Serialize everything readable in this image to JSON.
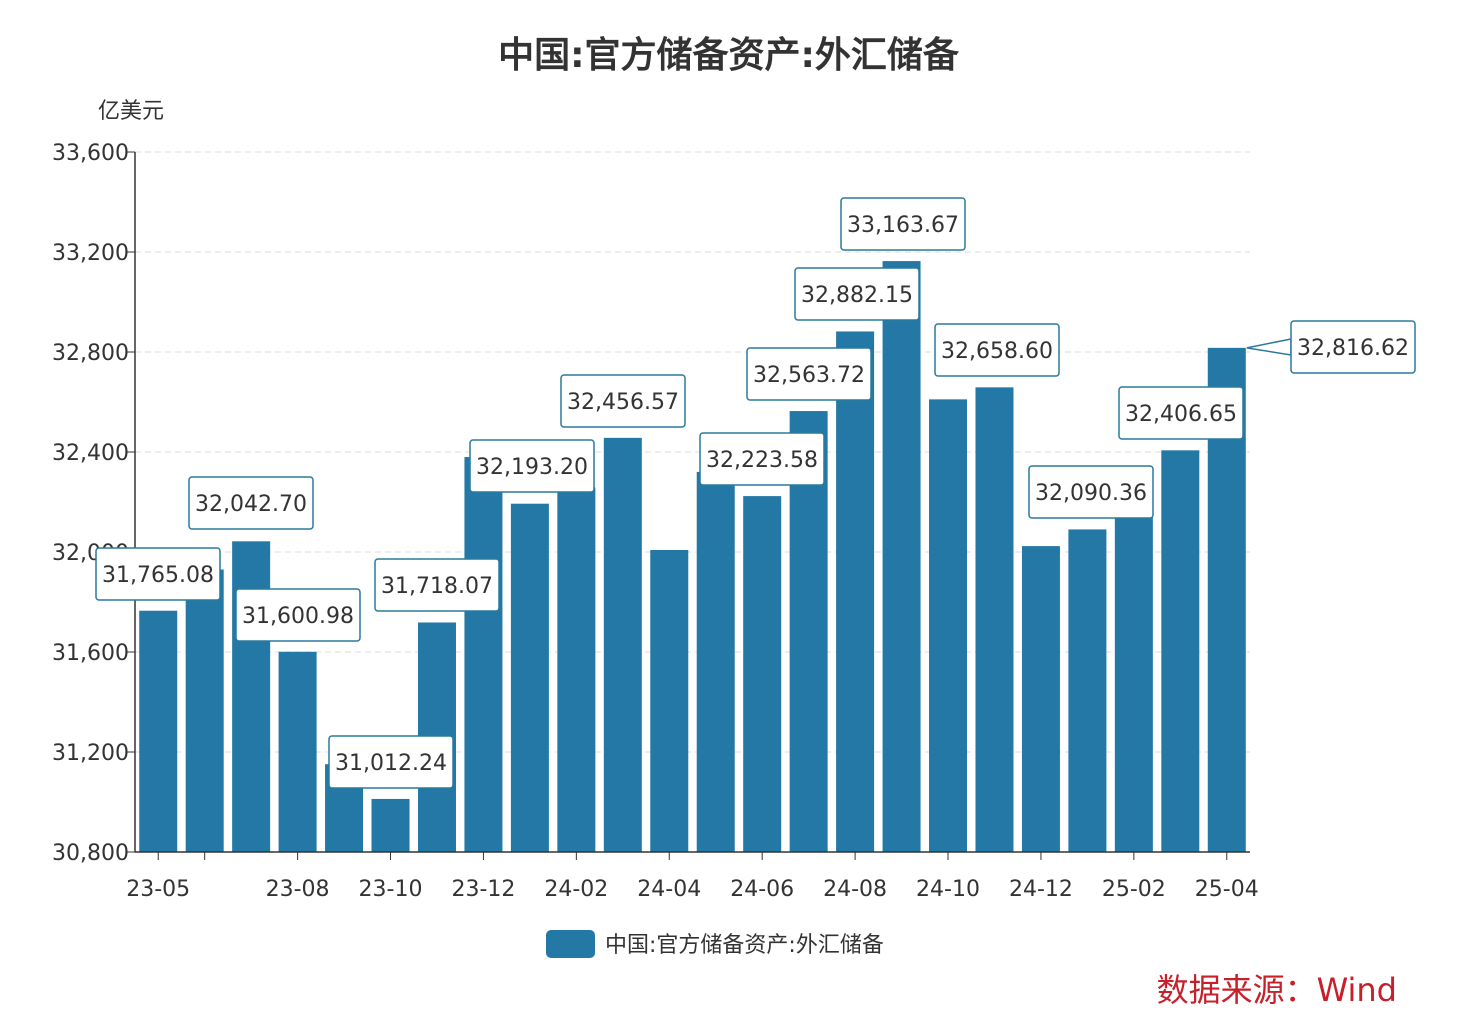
{
  "chart_data": {
    "type": "bar",
    "title": "中国:官方储备资产:外汇储备",
    "ylabel": "亿美元",
    "xlabel": "",
    "ylim": [
      30800,
      33600
    ],
    "yticks": [
      "30,800",
      "31,200",
      "31,600",
      "32,000",
      "32,400",
      "32,800",
      "33,200",
      "33,600"
    ],
    "grid": true,
    "legend_placement": "bottom",
    "categories": [
      "23-05",
      "23-06",
      "23-07",
      "23-08",
      "23-09",
      "23-10",
      "23-11",
      "23-12",
      "24-01",
      "24-02",
      "24-03",
      "24-04",
      "24-05",
      "24-06",
      "24-07",
      "24-08",
      "24-09",
      "24-10",
      "24-11",
      "24-12",
      "25-01",
      "25-02",
      "25-03",
      "25-04"
    ],
    "xtick_labels": {
      "0": "23-05",
      "3": "23-08",
      "5": "23-10",
      "7": "23-12",
      "9": "24-02",
      "11": "24-04",
      "13": "24-06",
      "15": "24-08",
      "17": "24-10",
      "19": "24-12",
      "21": "25-02",
      "23": "25-04"
    },
    "series": [
      {
        "name": "中国:官方储备资产:外汇储备",
        "color": "#2378a6",
        "values": [
          31765.08,
          31929.98,
          32042.7,
          31600.98,
          31151.24,
          31012.24,
          31718.07,
          32379.77,
          32193.2,
          32258.17,
          32456.57,
          32008.03,
          32320.39,
          32223.58,
          32563.72,
          32882.15,
          33163.67,
          32610.56,
          32658.6,
          32023.58,
          32090.36,
          32272.43,
          32406.65,
          32816.62
        ]
      }
    ],
    "data_labels": {
      "0": "31,765.08",
      "2": "32,042.70",
      "3": "31,600.98",
      "5": "31,012.24",
      "6": "31,718.07",
      "8": "32,193.20",
      "10": "32,456.57",
      "13": "32,223.58",
      "14": "32,563.72",
      "15": "32,882.15",
      "16": "33,163.67",
      "18": "32,658.60",
      "20": "32,090.36",
      "22": "32,406.65",
      "23": "32,816.62"
    }
  },
  "source": "数据来源：Wind"
}
